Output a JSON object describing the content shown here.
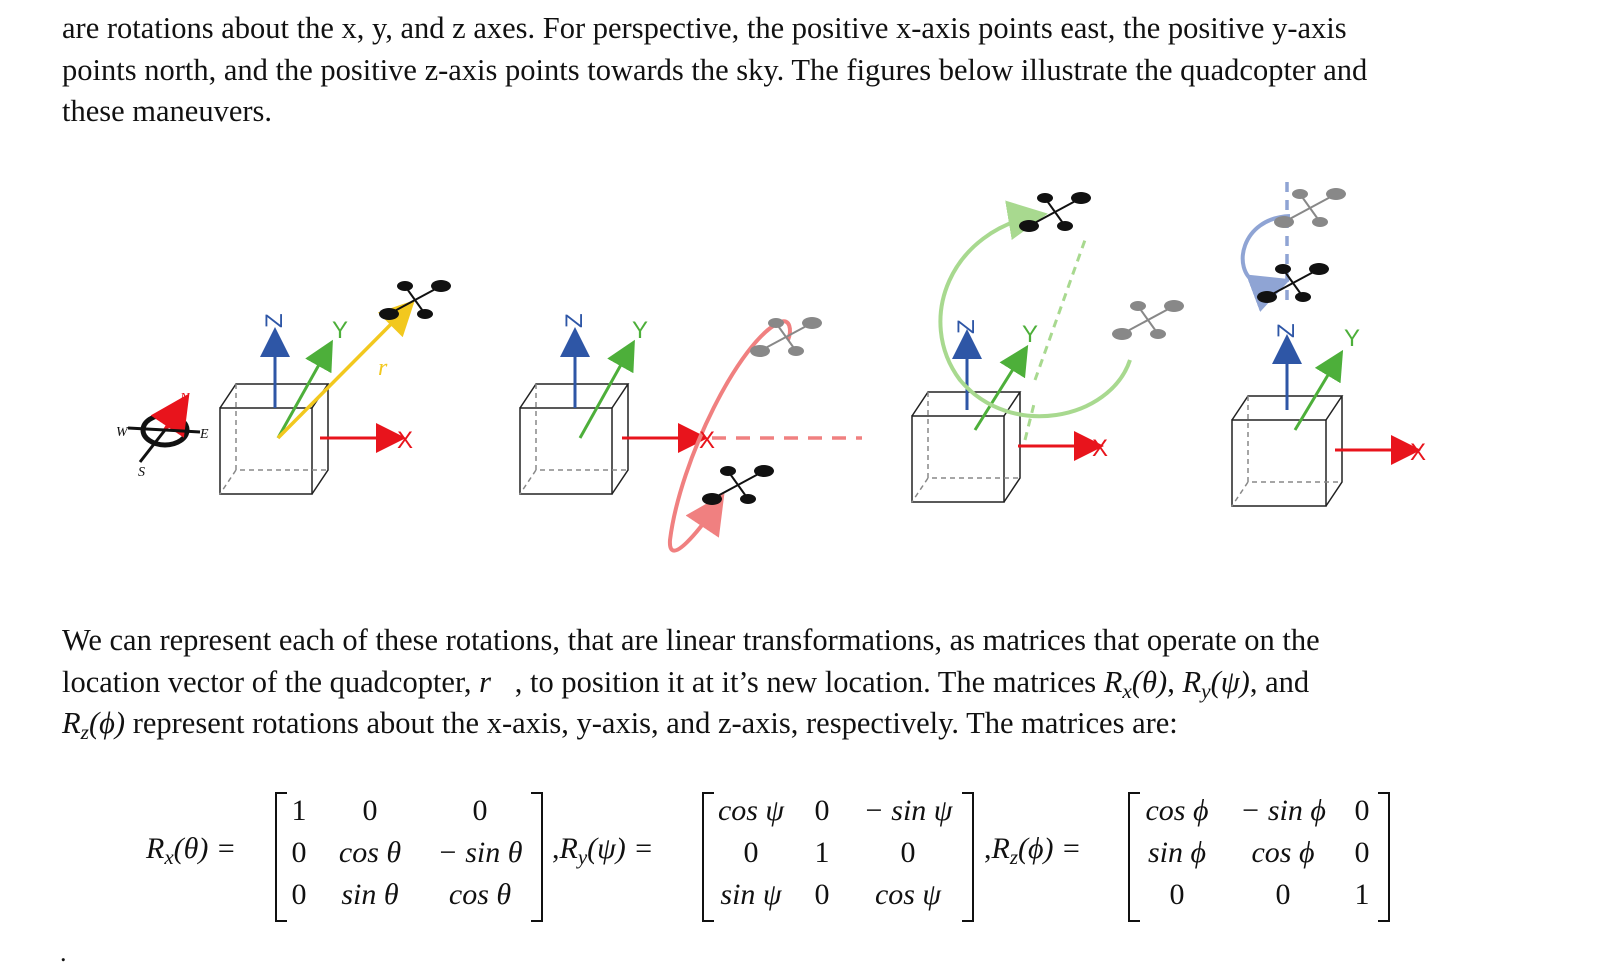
{
  "paragraph1": {
    "line1": "are rotations about the x, y, and z axes. For perspective, the positive x-axis points east, the positive y-axis",
    "line2": "points north, and the positive z-axis points towards the sky. The figures below illustrate the quadcopter and",
    "line3": "these maneuvers."
  },
  "figure": {
    "compass": {
      "n": "N",
      "e": "E",
      "s": "S",
      "w": "W"
    },
    "axes": {
      "x": "X",
      "y": "Y",
      "z": "Z"
    },
    "vector_label": "r",
    "colors": {
      "x_axis": "#e8141c",
      "y_axis": "#4daf3a",
      "z_axis": "#2e56a6",
      "vector": "#f2c81e",
      "rot_x": "#f08080",
      "rot_y": "#a8d98f",
      "rot_z": "#8fa4d4"
    }
  },
  "paragraph2": {
    "line1": "We can represent each of these rotations, that are linear transformations, as matrices that operate on the",
    "line2_a": "location vector of the quadcopter, ",
    "line2_r": "r⃗",
    "line2_b": ", to position it at it’s new location.  The matrices ",
    "line2_rx": "R",
    "line2_rx_sub": "x",
    "line2_rx_arg": "(θ)",
    "line2_sep1": ", ",
    "line2_ry": "R",
    "line2_ry_sub": "y",
    "line2_ry_arg": "(ψ)",
    "line2_and": ", and",
    "line3_rz": "R",
    "line3_rz_sub": "z",
    "line3_rz_arg": "(ϕ)",
    "line3_rest": " represent rotations about the x-axis, y-axis, and z-axis, respectively. The matrices are:"
  },
  "equations": {
    "rx_label": {
      "R": "R",
      "sub": "x",
      "arg": "(θ) ="
    },
    "rx": [
      [
        "1",
        "0",
        "0"
      ],
      [
        "0",
        "cos θ",
        "− sin θ"
      ],
      [
        "0",
        "sin θ",
        "cos θ"
      ]
    ],
    "ry_label": {
      "pre": ",",
      "R": "R",
      "sub": "y",
      "arg": "(ψ) ="
    },
    "ry": [
      [
        "cos ψ",
        "0",
        "− sin ψ"
      ],
      [
        "0",
        "1",
        "0"
      ],
      [
        "sin ψ",
        "0",
        "cos ψ"
      ]
    ],
    "rz_label": {
      "pre": ",",
      "R": "R",
      "sub": "z",
      "arg": "(ϕ) ="
    },
    "rz": [
      [
        "cos ϕ",
        "− sin ϕ",
        "0"
      ],
      [
        "sin ϕ",
        "cos ϕ",
        "0"
      ],
      [
        "0",
        "0",
        "1"
      ]
    ]
  },
  "trailing": "."
}
